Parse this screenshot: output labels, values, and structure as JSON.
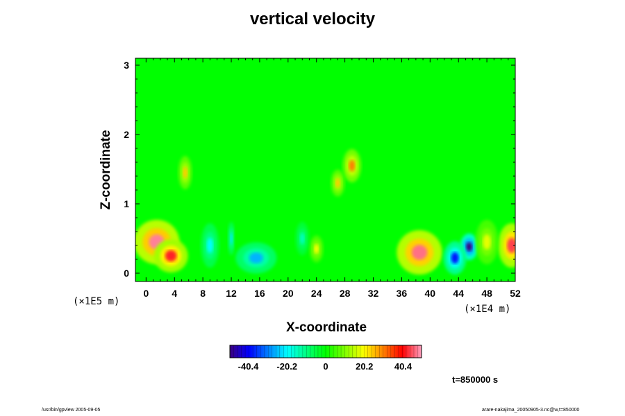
{
  "chart_data": {
    "type": "heatmap",
    "title": "vertical velocity",
    "xlabel": "X-coordinate",
    "ylabel": "Z-coordinate",
    "x_unit": "(×1E4 m)",
    "y_unit": "(×1E5 m)",
    "xlim": [
      -1.5,
      52
    ],
    "ylim": [
      -0.12,
      3.1
    ],
    "x_ticks": [
      0,
      4,
      8,
      12,
      16,
      20,
      24,
      28,
      32,
      36,
      40,
      44,
      48,
      52
    ],
    "y_ticks": [
      0,
      1,
      2,
      3
    ],
    "x_tick_labels": [
      "0",
      "4",
      "8",
      "12",
      "16",
      "20",
      "24",
      "28",
      "32",
      "36",
      "40",
      "44",
      "48",
      "52"
    ],
    "y_tick_labels": [
      "0",
      "1",
      "2",
      "3"
    ],
    "colorbar": {
      "range": [
        -50,
        50
      ],
      "ticks": [
        -40.4,
        -20.2,
        0,
        20.2,
        40.4
      ],
      "tick_labels": [
        "-40.4",
        "-20.2",
        "0",
        "20.2",
        "40.4"
      ]
    },
    "background_value": 0,
    "features": [
      {
        "x": 1.5,
        "z": 0.45,
        "value": 48,
        "sx": 2.0,
        "sz": 0.2
      },
      {
        "x": 3.5,
        "z": 0.25,
        "value": 42,
        "sx": 1.5,
        "sz": 0.15
      },
      {
        "x": 38.5,
        "z": 0.3,
        "value": 47,
        "sx": 2.0,
        "sz": 0.2
      },
      {
        "x": 51.5,
        "z": 0.4,
        "value": 44,
        "sx": 1.2,
        "sz": 0.2
      },
      {
        "x": 45.5,
        "z": 0.38,
        "value": -52,
        "sx": 0.8,
        "sz": 0.12
      },
      {
        "x": 43.5,
        "z": 0.22,
        "value": -38,
        "sx": 1.0,
        "sz": 0.15
      },
      {
        "x": 15.5,
        "z": 0.22,
        "value": -26,
        "sx": 1.8,
        "sz": 0.14
      },
      {
        "x": 9.0,
        "z": 0.4,
        "value": -20,
        "sx": 0.8,
        "sz": 0.2
      },
      {
        "x": 12.0,
        "z": 0.5,
        "value": -22,
        "sx": 0.3,
        "sz": 0.15
      },
      {
        "x": 29.0,
        "z": 1.55,
        "value": 30,
        "sx": 0.8,
        "sz": 0.15
      },
      {
        "x": 27.0,
        "z": 1.3,
        "value": 24,
        "sx": 0.6,
        "sz": 0.12
      },
      {
        "x": 5.5,
        "z": 1.45,
        "value": 24,
        "sx": 0.6,
        "sz": 0.15
      },
      {
        "x": 24.0,
        "z": 0.35,
        "value": 20,
        "sx": 0.6,
        "sz": 0.12
      },
      {
        "x": 22.0,
        "z": 0.5,
        "value": -15,
        "sx": 0.6,
        "sz": 0.15
      },
      {
        "x": 48.0,
        "z": 0.45,
        "value": 18,
        "sx": 1.0,
        "sz": 0.2
      }
    ],
    "time_label": "t=850000 s"
  },
  "footer": {
    "left": "/usr/bin/gpview 2005-09-05",
    "right": "arare-nakajima_20050905-3.nc@w,t=850000"
  }
}
